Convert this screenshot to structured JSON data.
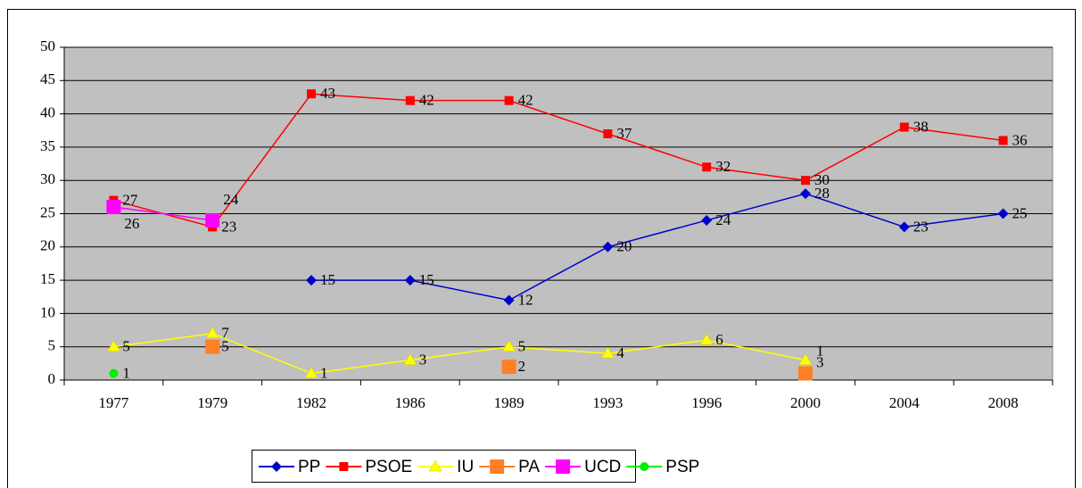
{
  "chart_data": {
    "type": "line",
    "categories": [
      "1977",
      "1979",
      "1982",
      "1986",
      "1989",
      "1993",
      "1996",
      "2000",
      "2004",
      "2008"
    ],
    "series": [
      {
        "name": "PP",
        "color": "#0000cc",
        "marker": "diamond",
        "values": [
          null,
          null,
          15,
          15,
          12,
          20,
          24,
          28,
          23,
          25
        ]
      },
      {
        "name": "PSOE",
        "color": "#ff0000",
        "marker": "square",
        "values": [
          27,
          23,
          43,
          42,
          42,
          37,
          32,
          30,
          38,
          36
        ]
      },
      {
        "name": "IU",
        "color": "#ffff00",
        "marker": "triangle",
        "values": [
          5,
          7,
          1,
          3,
          5,
          4,
          6,
          3,
          null,
          null
        ]
      },
      {
        "name": "PA",
        "color": "#ff7f27",
        "marker": "bigsquare",
        "values": [
          null,
          5,
          null,
          null,
          2,
          null,
          null,
          1,
          null,
          null
        ]
      },
      {
        "name": "UCD",
        "color": "#ff00ff",
        "marker": "bigsquare",
        "values": [
          26,
          24,
          null,
          null,
          null,
          null,
          null,
          null,
          null,
          null
        ]
      },
      {
        "name": "PSP",
        "color": "#00ee00",
        "marker": "circle",
        "values": [
          1,
          null,
          null,
          null,
          null,
          null,
          null,
          null,
          null,
          null
        ]
      }
    ],
    "ylim": [
      0,
      50
    ],
    "yticks": [
      0,
      5,
      10,
      15,
      20,
      25,
      30,
      35,
      40,
      45,
      50
    ],
    "grid": true,
    "legend": "bottom"
  }
}
